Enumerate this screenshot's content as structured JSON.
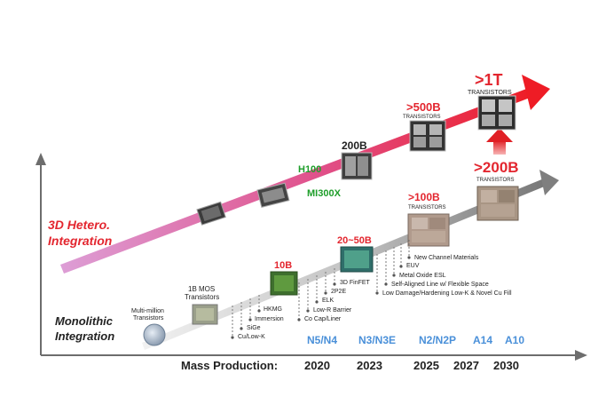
{
  "tracks": {
    "hetero": {
      "line1": "3D Hetero.",
      "line2": "Integration"
    },
    "mono": {
      "line1": "Monolithic",
      "line2": "Integration"
    }
  },
  "hetero_milestones": [
    {
      "big": "",
      "small": "",
      "caption": "H100"
    },
    {
      "big": "200B",
      "small": "",
      "caption": "MI300X"
    },
    {
      "big": ">500B",
      "small": "TRANSISTORS",
      "caption": ""
    },
    {
      "big": ">1T",
      "small": "TRANSISTORS",
      "caption": ""
    }
  ],
  "mono_milestones": [
    {
      "big": "",
      "small": "Multi-million\nTransistors"
    },
    {
      "big": "",
      "small": "1B MOS\nTransistors"
    },
    {
      "big": "10B",
      "small": ""
    },
    {
      "big": "20~50B",
      "small": ""
    },
    {
      "big": ">100B",
      "small": "TRANSISTORS"
    },
    {
      "big": ">200B",
      "small": "TRANSISTORS"
    }
  ],
  "tech_labels": [
    "Cu/Low-K",
    "SiGe",
    "Immersion",
    "HKMG",
    "Co Cap/Liner",
    "Low-R Barrier",
    "ELK",
    "2P2E",
    "3D FinFET",
    "Low Damage/Hardening Low-K & Novel Cu Fill",
    "Self-Aligned Line w/ Flexible Space",
    "Metal Oxide ESL",
    "EUV",
    "New Channel Materials"
  ],
  "nodes": [
    "N5/N4",
    "N3/N3E",
    "N2/N2P",
    "A14",
    "A10"
  ],
  "axis": {
    "label": "Mass Production:",
    "years": [
      "2020",
      "2023",
      "2025",
      "2027",
      "2030"
    ]
  },
  "colors": {
    "hetero_start": "#d98fd0",
    "hetero_end": "#ee1c25",
    "mono_start": "#e8e8e8",
    "mono_end": "#7f7f7f",
    "red_text": "#e3262f",
    "green_text": "#1e9e2a",
    "node_blue": "#4a90d9",
    "dark": "#222222"
  }
}
